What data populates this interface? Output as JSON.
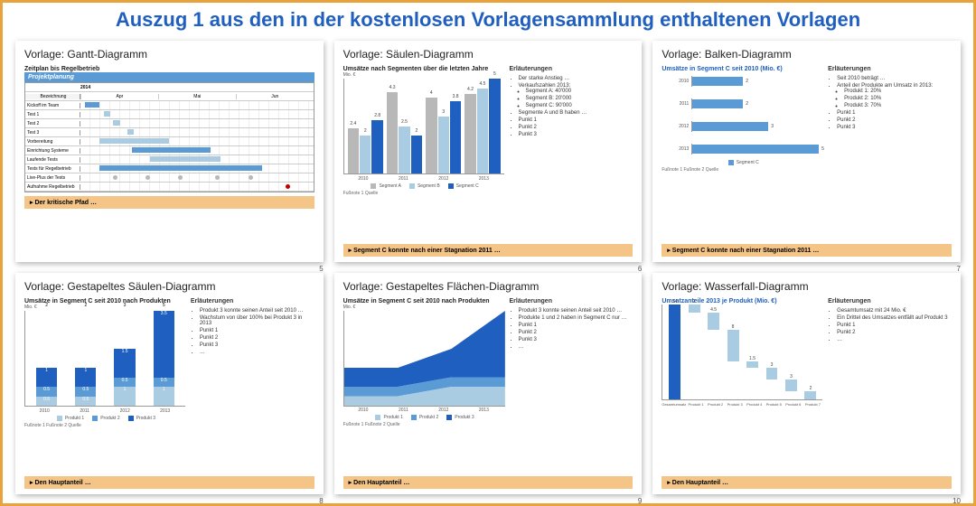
{
  "header": "Auszug 1 aus den in der kostenlosen Vorlagensammlung enthaltenen Vorlagen",
  "colors": {
    "border": "#e8a33d",
    "headerText": "#1f5fbf",
    "captionBg": "#f4c586",
    "darkBlue": "#1f5fbf",
    "midBlue": "#5b9bd5",
    "lightBlue": "#a9cce3",
    "grey": "#b8b8b8"
  },
  "slides": [
    {
      "title": "Vorlage: Gantt-Diagramm",
      "subtitle": "Zeitplan bis Regelbetrieb",
      "pageNum": "5",
      "caption": "Der kritische Pfad …",
      "gantt": {
        "header": "Projektplanung",
        "year": "2014",
        "months": [
          "Apr",
          "Mai",
          "Jun"
        ],
        "rows": [
          {
            "label": "Bezeichnung",
            "bars": []
          },
          {
            "label": "Kickoff im Team",
            "bars": [
              {
                "left": 2,
                "width": 6,
                "color": "#5b9bd5"
              }
            ]
          },
          {
            "label": "Test 1",
            "bars": [
              {
                "left": 10,
                "width": 3,
                "color": "#a9cce3"
              }
            ]
          },
          {
            "label": "Test 2",
            "bars": [
              {
                "left": 14,
                "width": 3,
                "color": "#a9cce3"
              }
            ]
          },
          {
            "label": "Test 3",
            "bars": [
              {
                "left": 20,
                "width": 3,
                "color": "#a9cce3"
              }
            ]
          },
          {
            "label": "Vorbereitung",
            "bars": [
              {
                "left": 8,
                "width": 30,
                "color": "#a9cce3"
              }
            ]
          },
          {
            "label": "Einrichtung Systeme",
            "bars": [
              {
                "left": 22,
                "width": 34,
                "color": "#5b9bd5"
              }
            ]
          },
          {
            "label": "Laufende Tests",
            "bars": [
              {
                "left": 30,
                "width": 30,
                "color": "#a9cce3"
              }
            ]
          },
          {
            "label": "Tests für Regelbetrieb",
            "bars": [
              {
                "left": 8,
                "width": 70,
                "color": "#5b9bd5"
              }
            ]
          },
          {
            "label": "Live-Plus der Tests",
            "dots": [
              {
                "left": 14,
                "color": "#b8b8b8"
              },
              {
                "left": 28,
                "color": "#b8b8b8"
              },
              {
                "left": 42,
                "color": "#b8b8b8"
              },
              {
                "left": 58,
                "color": "#b8b8b8"
              },
              {
                "left": 72,
                "color": "#b8b8b8"
              }
            ]
          },
          {
            "label": "Aufnahme Regelbetrieb",
            "dots": [
              {
                "left": 88,
                "color": "#c00000"
              }
            ]
          }
        ]
      }
    },
    {
      "title": "Vorlage: Säulen-Diagramm",
      "subtitle": "Umsätze nach Segmenten über die letzten Jahre",
      "pageNum": "6",
      "caption": "Segment C konnte nach einer Stagnation 2011 …",
      "footnote": "Fußnote 1\nQuelle",
      "notesHead": "Erläuterungen",
      "notes": [
        "Der starke Anstieg …",
        "Verkaufszahlen 2013:",
        [
          "Segment A: 40'000",
          "Segment B: 20'000",
          "Segment C: 90'000"
        ],
        "Segmente A und B haben …",
        "Punkt 1",
        "Punkt 2",
        "Punkt 3"
      ],
      "colchart": {
        "ylabel": "Mio. €",
        "ymax": 5,
        "legend": [
          {
            "name": "Segment A",
            "color": "#b8b8b8"
          },
          {
            "name": "Segment B",
            "color": "#a9cce3"
          },
          {
            "name": "Segment C",
            "color": "#1f5fbf"
          }
        ],
        "categories": [
          "2010",
          "2011",
          "2012",
          "2013"
        ],
        "series": [
          {
            "name": "A",
            "color": "#b8b8b8",
            "values": [
              2.4,
              4.3,
              4.0,
              4.2
            ]
          },
          {
            "name": "B",
            "color": "#a9cce3",
            "values": [
              2.0,
              2.5,
              3.0,
              4.5
            ]
          },
          {
            "name": "C",
            "color": "#1f5fbf",
            "values": [
              2.8,
              2.0,
              3.8,
              5.0
            ]
          }
        ]
      }
    },
    {
      "title": "Vorlage: Balken-Diagramm",
      "subtitle": "Umsätze in Segment C seit 2010 (Mio. €)",
      "pageNum": "7",
      "caption": "Segment C konnte nach einer Stagnation 2011 …",
      "footnote": "Fußnote 1\nFußnote 2\nQuelle",
      "notesHead": "Erläuterungen",
      "notes": [
        "Seit 2010 beträgt …",
        "Anteil der Produkte am Umsatz in 2013:",
        [
          "Produkt 1: 20%",
          "Produkt 2: 10%",
          "Produkt 3: 70%"
        ],
        "Punkt 1",
        "Punkt 2",
        "Punkt 3"
      ],
      "hbar": {
        "xmax": 5,
        "color": "#5b9bd5",
        "legend": "Segment C",
        "rows": [
          {
            "label": "2010",
            "value": 2
          },
          {
            "label": "2011",
            "value": 2
          },
          {
            "label": "2012",
            "value": 3
          },
          {
            "label": "2013",
            "value": 5
          }
        ]
      }
    },
    {
      "title": "Vorlage: Gestapeltes Säulen-Diagramm",
      "subtitle": "Umsätze in Segment C seit 2010 nach Produkten",
      "pageNum": "8",
      "caption": "Den Hauptanteil …",
      "footnote": "Fußnote 1\nFußnote 2\nQuelle",
      "notesHead": "Erläuterungen",
      "notes": [
        "Produkt 3 konnte seinen Anteil seit 2010 …",
        "Wachstum von über 100% bei Produkt 3 in 2013",
        "Punkt 1",
        "Punkt 2",
        "Punkt 3",
        "…"
      ],
      "stack": {
        "ylabel": "Mio. €",
        "ymax": 5,
        "legend": [
          {
            "name": "Produkt 1",
            "color": "#a9cce3"
          },
          {
            "name": "Produkt 2",
            "color": "#5b9bd5"
          },
          {
            "name": "Produkt 3",
            "color": "#1f5fbf"
          }
        ],
        "categories": [
          "2010",
          "2011",
          "2012",
          "2013"
        ],
        "data": [
          {
            "segs": [
              0.5,
              0.5,
              1.0
            ],
            "labels": [
              "0.5",
              "0.5",
              "1"
            ],
            "total": "2"
          },
          {
            "segs": [
              0.5,
              0.5,
              1.0
            ],
            "labels": [
              "0.5",
              "0.5",
              "1"
            ],
            "total": "2"
          },
          {
            "segs": [
              1.0,
              0.5,
              1.5
            ],
            "labels": [
              "1",
              "0.5",
              "1.5"
            ],
            "total": "3"
          },
          {
            "segs": [
              1.0,
              0.5,
              3.5
            ],
            "labels": [
              "1",
              "0.5",
              "3.5"
            ],
            "total": "5"
          }
        ]
      }
    },
    {
      "title": "Vorlage: Gestapeltes Flächen-Diagramm",
      "subtitle": "Umsätze in Segment C seit 2010 nach Produkten",
      "pageNum": "9",
      "caption": "Den Hauptanteil …",
      "footnote": "Fußnote 1\nFußnote 2\nQuelle",
      "notesHead": "Erläuterungen",
      "notes": [
        "Produkt 3 konnte seinen Anteil seit 2010 …",
        "Produkte 1 und 2 haben in Segment C nur …",
        "Punkt 1",
        "Punkt 2",
        "Punkt 3",
        "…"
      ],
      "area": {
        "ylabel": "Mio. €",
        "ymax": 5,
        "categories": [
          "2010",
          "2011",
          "2012",
          "2013"
        ],
        "legend": [
          {
            "name": "Produkt 1",
            "color": "#a9cce3"
          },
          {
            "name": "Produkt 2",
            "color": "#5b9bd5"
          },
          {
            "name": "Produkt 3",
            "color": "#1f5fbf"
          }
        ],
        "stacks": [
          [
            0.5,
            1.0,
            2.0
          ],
          [
            0.5,
            1.0,
            2.0
          ],
          [
            1.0,
            1.5,
            3.0
          ],
          [
            1.0,
            1.5,
            5.0
          ]
        ]
      }
    },
    {
      "title": "Vorlage: Wasserfall-Diagramm",
      "subtitle": "Umsatzanteile 2013 je Produkt (Mio. €)",
      "pageNum": "10",
      "caption": "Den Hauptanteil …",
      "notesHead": "Erläuterungen",
      "notes": [
        "Gesamtumsatz mit 24 Mio. €",
        "Ein Drittel des Umsatzes entfällt auf Produkt 3",
        "Punkt 1",
        "Punkt 2",
        "…"
      ],
      "waterfall": {
        "ymax": 24,
        "colorTotal": "#1f5fbf",
        "colorStep": "#a9cce3",
        "categories": [
          "Gesamtumsatz",
          "Produkt 1",
          "Produkt 2",
          "Produkt 3",
          "Produkt 4",
          "Produkt 5",
          "Produkt 6",
          "Produkt 7"
        ],
        "bars": [
          {
            "val": 24,
            "bottom": 0,
            "height": 24,
            "label": "24",
            "total": true
          },
          {
            "val": 2,
            "bottom": 22,
            "height": 2,
            "label": "2"
          },
          {
            "val": 4.5,
            "bottom": 17.5,
            "height": 4.5,
            "label": "4.5"
          },
          {
            "val": 8,
            "bottom": 9.5,
            "height": 8,
            "label": "8"
          },
          {
            "val": 1.5,
            "bottom": 8,
            "height": 1.5,
            "label": "1.5"
          },
          {
            "val": 3,
            "bottom": 5,
            "height": 3,
            "label": "3"
          },
          {
            "val": 3,
            "bottom": 2,
            "height": 3,
            "label": "3"
          },
          {
            "val": 2,
            "bottom": 0,
            "height": 2,
            "label": "2"
          }
        ]
      }
    }
  ]
}
